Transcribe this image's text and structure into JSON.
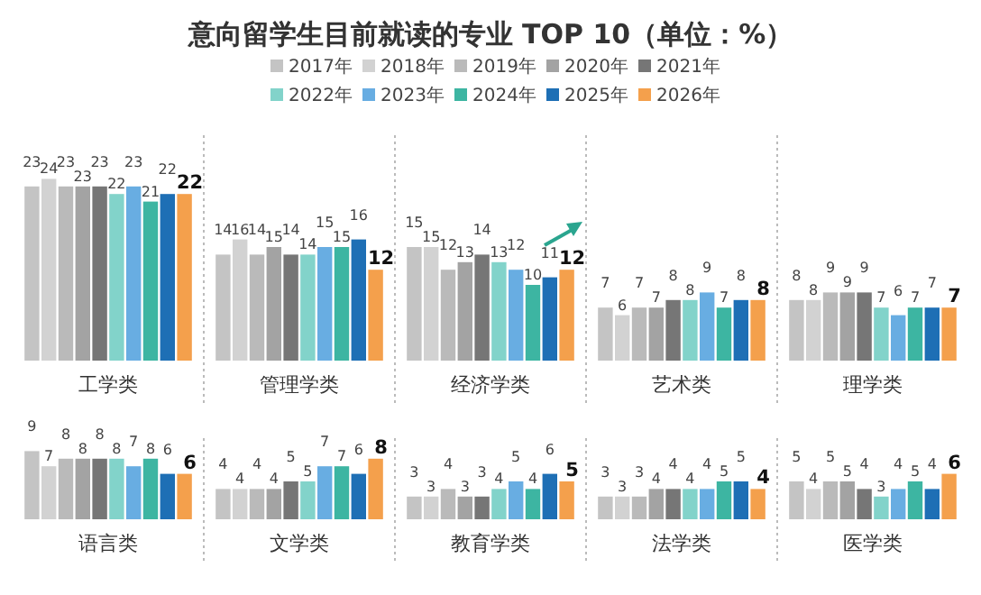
{
  "chart_data": [
    {
      "type": "bar",
      "title": "意向留学生目前就读的专业 TOP 10（单位：%）",
      "legend": "top",
      "data_labels": true,
      "categories": [
        "工学类",
        "管理学类",
        "经济学类",
        "艺术类",
        "理学类"
      ],
      "series": [
        {
          "name": "2017年",
          "color": "#c4c4c4",
          "values": [
            23,
            14,
            15,
            7,
            8
          ]
        },
        {
          "name": "2018年",
          "color": "#d2d2d2",
          "values": [
            24,
            16,
            15,
            6,
            8
          ]
        },
        {
          "name": "2019年",
          "color": "#bababa",
          "values": [
            23,
            14,
            12,
            7,
            9
          ]
        },
        {
          "name": "2020年",
          "color": "#a3a3a3",
          "values": [
            23,
            15,
            13,
            7,
            9
          ]
        },
        {
          "name": "2021年",
          "color": "#767676",
          "values": [
            23,
            14,
            14,
            8,
            9
          ]
        },
        {
          "name": "2022年",
          "color": "#82d3ca",
          "values": [
            22,
            14,
            13,
            8,
            7
          ]
        },
        {
          "name": "2023年",
          "color": "#68ade2",
          "values": [
            23,
            15,
            12,
            9,
            6
          ]
        },
        {
          "name": "2024年",
          "color": "#3db5a2",
          "values": [
            21,
            15,
            10,
            7,
            7
          ]
        },
        {
          "name": "2025年",
          "color": "#1e6fb5",
          "values": [
            22,
            16,
            11,
            8,
            7
          ]
        },
        {
          "name": "2026年",
          "color": "#f4a04c",
          "values": [
            22,
            12,
            12,
            8,
            7
          ]
        }
      ]
    },
    {
      "type": "bar",
      "data_labels": true,
      "categories": [
        "语言类",
        "文学类",
        "教育学类",
        "法学类",
        "医学类"
      ],
      "series": [
        {
          "color": "#c4c4c4",
          "values": [
            9,
            4,
            3,
            3,
            5
          ]
        },
        {
          "color": "#d2d2d2",
          "values": [
            7,
            4,
            3,
            3,
            4
          ]
        },
        {
          "color": "#bababa",
          "values": [
            8,
            4,
            4,
            3,
            5
          ]
        },
        {
          "color": "#a3a3a3",
          "values": [
            8,
            4,
            3,
            4,
            5
          ]
        },
        {
          "color": "#767676",
          "values": [
            8,
            5,
            3,
            4,
            4
          ]
        },
        {
          "color": "#82d3ca",
          "values": [
            8,
            5,
            4,
            4,
            3
          ]
        },
        {
          "color": "#68ade2",
          "values": [
            7,
            7,
            5,
            4,
            4
          ]
        },
        {
          "color": "#3db5a2",
          "values": [
            8,
            7,
            4,
            5,
            5
          ]
        },
        {
          "color": "#1e6fb5",
          "values": [
            6,
            6,
            6,
            5,
            4
          ]
        },
        {
          "color": "#f4a04c",
          "values": [
            6,
            8,
            5,
            4,
            6
          ]
        }
      ]
    }
  ]
}
